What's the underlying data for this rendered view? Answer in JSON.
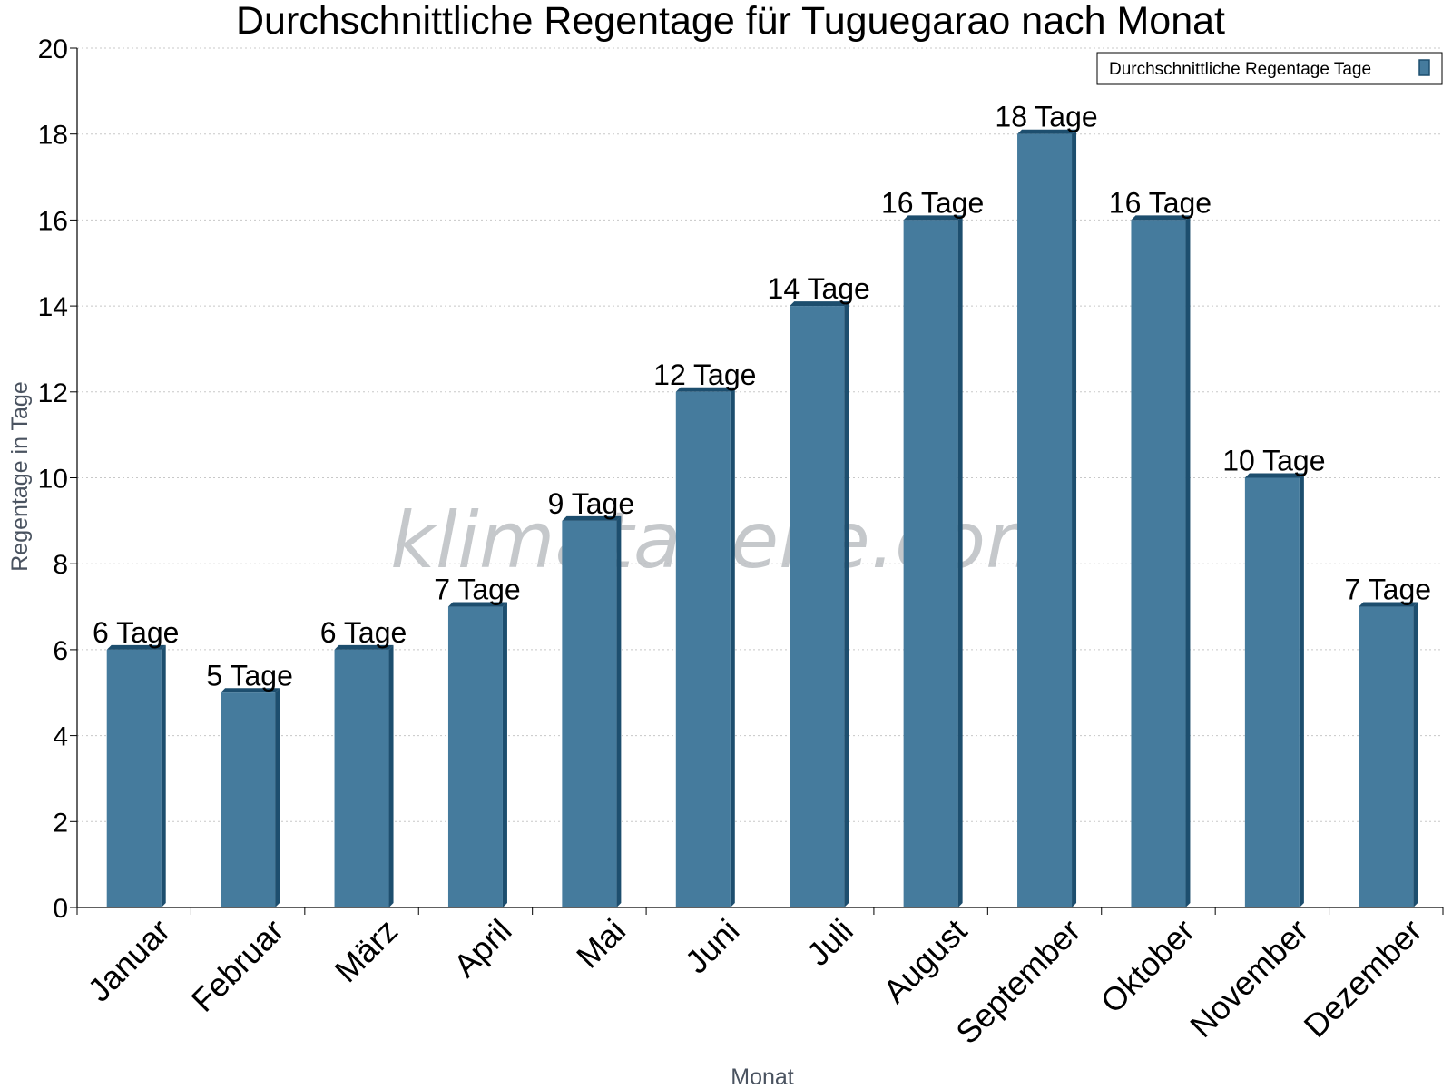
{
  "chart_data": {
    "type": "bar",
    "title": "Durchschnittliche Regentage für Tuguegarao nach Monat",
    "xlabel": "Monat",
    "ylabel": "Regentage in Tage",
    "ylim": [
      0,
      20
    ],
    "yticks": [
      0,
      2,
      4,
      6,
      8,
      10,
      12,
      14,
      16,
      18,
      20
    ],
    "categories": [
      "Januar",
      "Februar",
      "März",
      "April",
      "Mai",
      "Juni",
      "Juli",
      "August",
      "September",
      "Oktober",
      "November",
      "Dezember"
    ],
    "series": [
      {
        "name": "Durchschnittliche Regentage Tage",
        "values": [
          6,
          5,
          6,
          7,
          9,
          12,
          14,
          16,
          18,
          16,
          10,
          7
        ],
        "labels": [
          "6 Tage",
          "5 Tage",
          "6 Tage",
          "7 Tage",
          "9 Tage",
          "12 Tage",
          "14 Tage",
          "16 Tage",
          "18 Tage",
          "16 Tage",
          "10 Tage",
          "7 Tage"
        ],
        "color": "#457b9d",
        "edge_color": "#1d4e6e"
      }
    ],
    "grid": true,
    "legend_position": "top-right"
  },
  "watermark": "klimatabelle.com"
}
